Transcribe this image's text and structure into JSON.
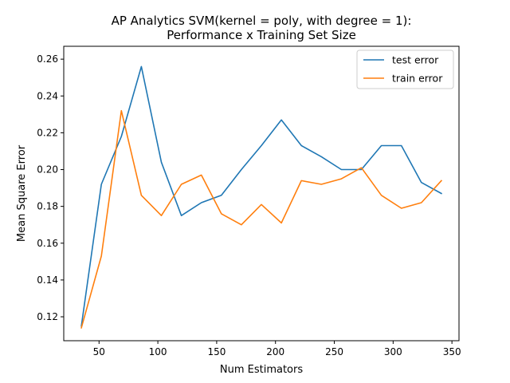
{
  "chart_data": {
    "type": "line",
    "title": "AP Analytics SVM(kernel = poly, with degree = 1):",
    "subtitle": "Performance x Training Set Size",
    "xlabel": "Num Estimators",
    "ylabel": "Mean Square Error",
    "xlim": [
      20,
      356
    ],
    "ylim": [
      0.107,
      0.267
    ],
    "xticks": [
      50,
      100,
      150,
      200,
      250,
      300,
      350
    ],
    "xtick_labels": [
      "50",
      "100",
      "150",
      "200",
      "250",
      "300",
      "350"
    ],
    "yticks": [
      0.12,
      0.14,
      0.16,
      0.18,
      0.2,
      0.22,
      0.24,
      0.26
    ],
    "ytick_labels": [
      "0.12",
      "0.14",
      "0.16",
      "0.18",
      "0.20",
      "0.22",
      "0.24",
      "0.26"
    ],
    "grid": false,
    "legend_position": "top-right",
    "x": [
      35,
      52,
      69,
      86,
      103,
      120,
      137,
      154,
      171,
      188,
      205,
      222,
      239,
      256,
      273,
      290,
      307,
      324,
      341
    ],
    "series": [
      {
        "name": "test error",
        "color": "#1f77b4",
        "values": [
          0.115,
          0.192,
          0.218,
          0.256,
          0.204,
          0.175,
          0.182,
          0.186,
          0.2,
          0.213,
          0.227,
          0.213,
          0.207,
          0.2,
          0.2,
          0.213,
          0.213,
          0.193,
          0.187
        ]
      },
      {
        "name": "train error",
        "color": "#ff7f0e",
        "values": [
          0.114,
          0.153,
          0.232,
          0.186,
          0.175,
          0.192,
          0.197,
          0.176,
          0.17,
          0.181,
          0.171,
          0.194,
          0.192,
          0.195,
          0.201,
          0.186,
          0.179,
          0.182,
          0.194
        ]
      }
    ]
  }
}
